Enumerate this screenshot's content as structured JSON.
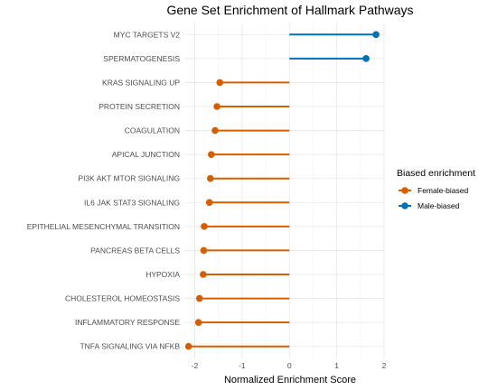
{
  "chart_data": {
    "type": "lollipop",
    "title": "Gene Set Enrichment of Hallmark Pathways",
    "xlabel": "Normalized Enrichment Score",
    "ylabel": "",
    "xlim": [
      -2.2,
      2.0
    ],
    "x_ticks": [
      -2,
      -1,
      0,
      1,
      2
    ],
    "x_tick_labels": [
      "-2",
      "-1",
      "0",
      "1",
      "2"
    ],
    "grid": true,
    "legend_placement": "right",
    "legend": {
      "title": "Biased enrichment",
      "entries": [
        {
          "name": "Female-biased",
          "color": "#d55e00"
        },
        {
          "name": "Male-biased",
          "color": "#0072b2"
        }
      ]
    },
    "categories": [
      "MYC TARGETS V2",
      "SPERMATOGENESIS",
      "KRAS SIGNALING UP",
      "PROTEIN SECRETION",
      "COAGULATION",
      "APICAL JUNCTION",
      "PI3K AKT MTOR SIGNALING",
      "IL6 JAK STAT3 SIGNALING",
      "EPITHELIAL MESENCHYMAL TRANSITION",
      "PANCREAS BETA CELLS",
      "HYPOXIA",
      "CHOLESTEROL HOMEOSTASIS",
      "INFLAMMATORY RESPONSE",
      "TNFA SIGNALING VIA NFKB"
    ],
    "values": [
      1.83,
      1.62,
      -1.47,
      -1.53,
      -1.57,
      -1.65,
      -1.67,
      -1.69,
      -1.8,
      -1.81,
      -1.82,
      -1.9,
      -1.92,
      -2.13
    ],
    "groups": [
      "Male-biased",
      "Male-biased",
      "Female-biased",
      "Female-biased",
      "Female-biased",
      "Female-biased",
      "Female-biased",
      "Female-biased",
      "Female-biased",
      "Female-biased",
      "Female-biased",
      "Female-biased",
      "Female-biased",
      "Female-biased"
    ]
  }
}
